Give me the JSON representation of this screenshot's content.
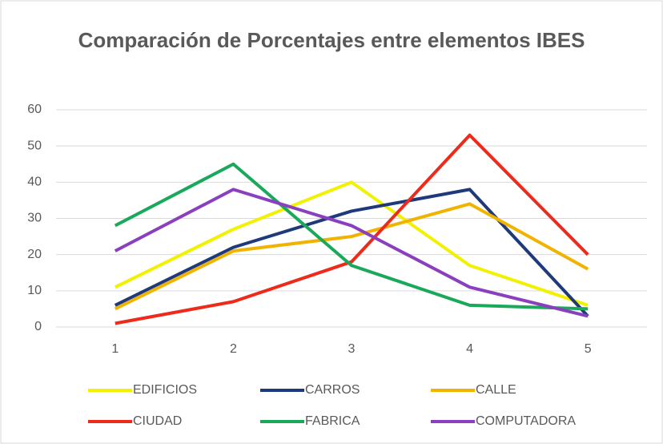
{
  "chart_data": {
    "type": "line",
    "title": "Comparación de Porcentajes entre elementos IBES",
    "categories": [
      "1",
      "2",
      "3",
      "4",
      "5"
    ],
    "series": [
      {
        "name": "EDIFICIOS",
        "color": "#f2f200",
        "values": [
          11,
          27,
          40,
          17,
          6
        ]
      },
      {
        "name": "CARROS",
        "color": "#1f3a7a",
        "values": [
          6,
          22,
          32,
          38,
          3
        ]
      },
      {
        "name": "CALLE",
        "color": "#f0b400",
        "values": [
          5,
          21,
          25,
          34,
          16
        ]
      },
      {
        "name": "CIUDAD",
        "color": "#ee2a1b",
        "values": [
          1,
          7,
          18,
          53,
          20
        ]
      },
      {
        "name": "FABRICA",
        "color": "#1aa85a",
        "values": [
          28,
          45,
          17,
          6,
          5
        ]
      },
      {
        "name": "COMPUTADORA",
        "color": "#8a3fbf",
        "values": [
          21,
          38,
          28,
          11,
          3
        ]
      }
    ],
    "ylim": [
      0,
      60
    ],
    "yticks": [
      0,
      10,
      20,
      30,
      40,
      50,
      60
    ],
    "grid": true,
    "legend": "bottom"
  }
}
